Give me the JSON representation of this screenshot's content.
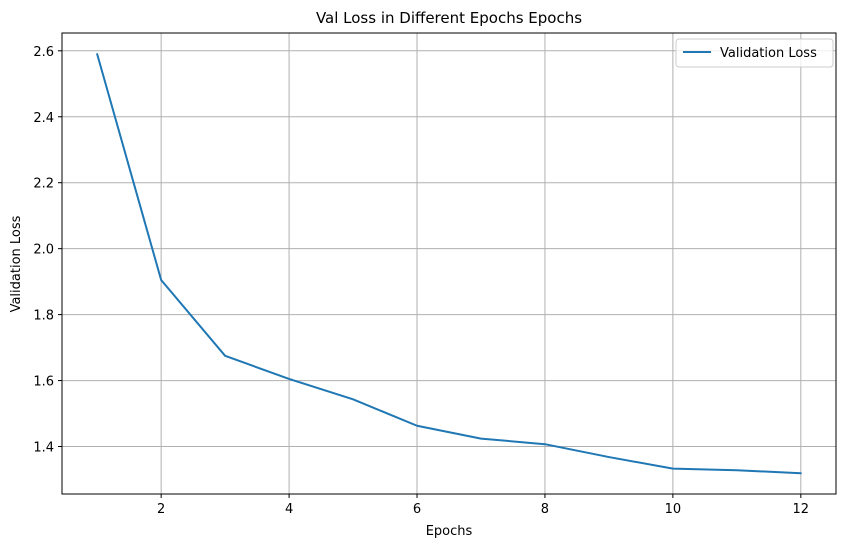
{
  "chart_data": {
    "type": "line",
    "title": "Val Loss in Different Epochs Epochs",
    "xlabel": "Epochs",
    "ylabel": "Validation Loss",
    "x": [
      1,
      2,
      3,
      4,
      5,
      6,
      7,
      8,
      9,
      10,
      11,
      12
    ],
    "series": [
      {
        "name": "Validation Loss",
        "color": "#1f77b4",
        "values": [
          2.59,
          1.905,
          1.675,
          1.605,
          1.543,
          1.463,
          1.424,
          1.407,
          1.368,
          1.333,
          1.328,
          1.319
        ]
      }
    ],
    "xlim": [
      0.45,
      12.55
    ],
    "ylim": [
      1.256,
      2.654
    ],
    "xticks": [
      2,
      4,
      6,
      8,
      10,
      12
    ],
    "xtick_labels": [
      "2",
      "4",
      "6",
      "8",
      "10",
      "12"
    ],
    "yticks": [
      1.4,
      1.6,
      1.8,
      2.0,
      2.2,
      2.4,
      2.6
    ],
    "ytick_labels": [
      "1.4",
      "1.6",
      "1.8",
      "2.0",
      "2.2",
      "2.4",
      "2.6"
    ],
    "grid": true,
    "grid_color": "#b0b0b0",
    "legend_position": "top-right"
  }
}
